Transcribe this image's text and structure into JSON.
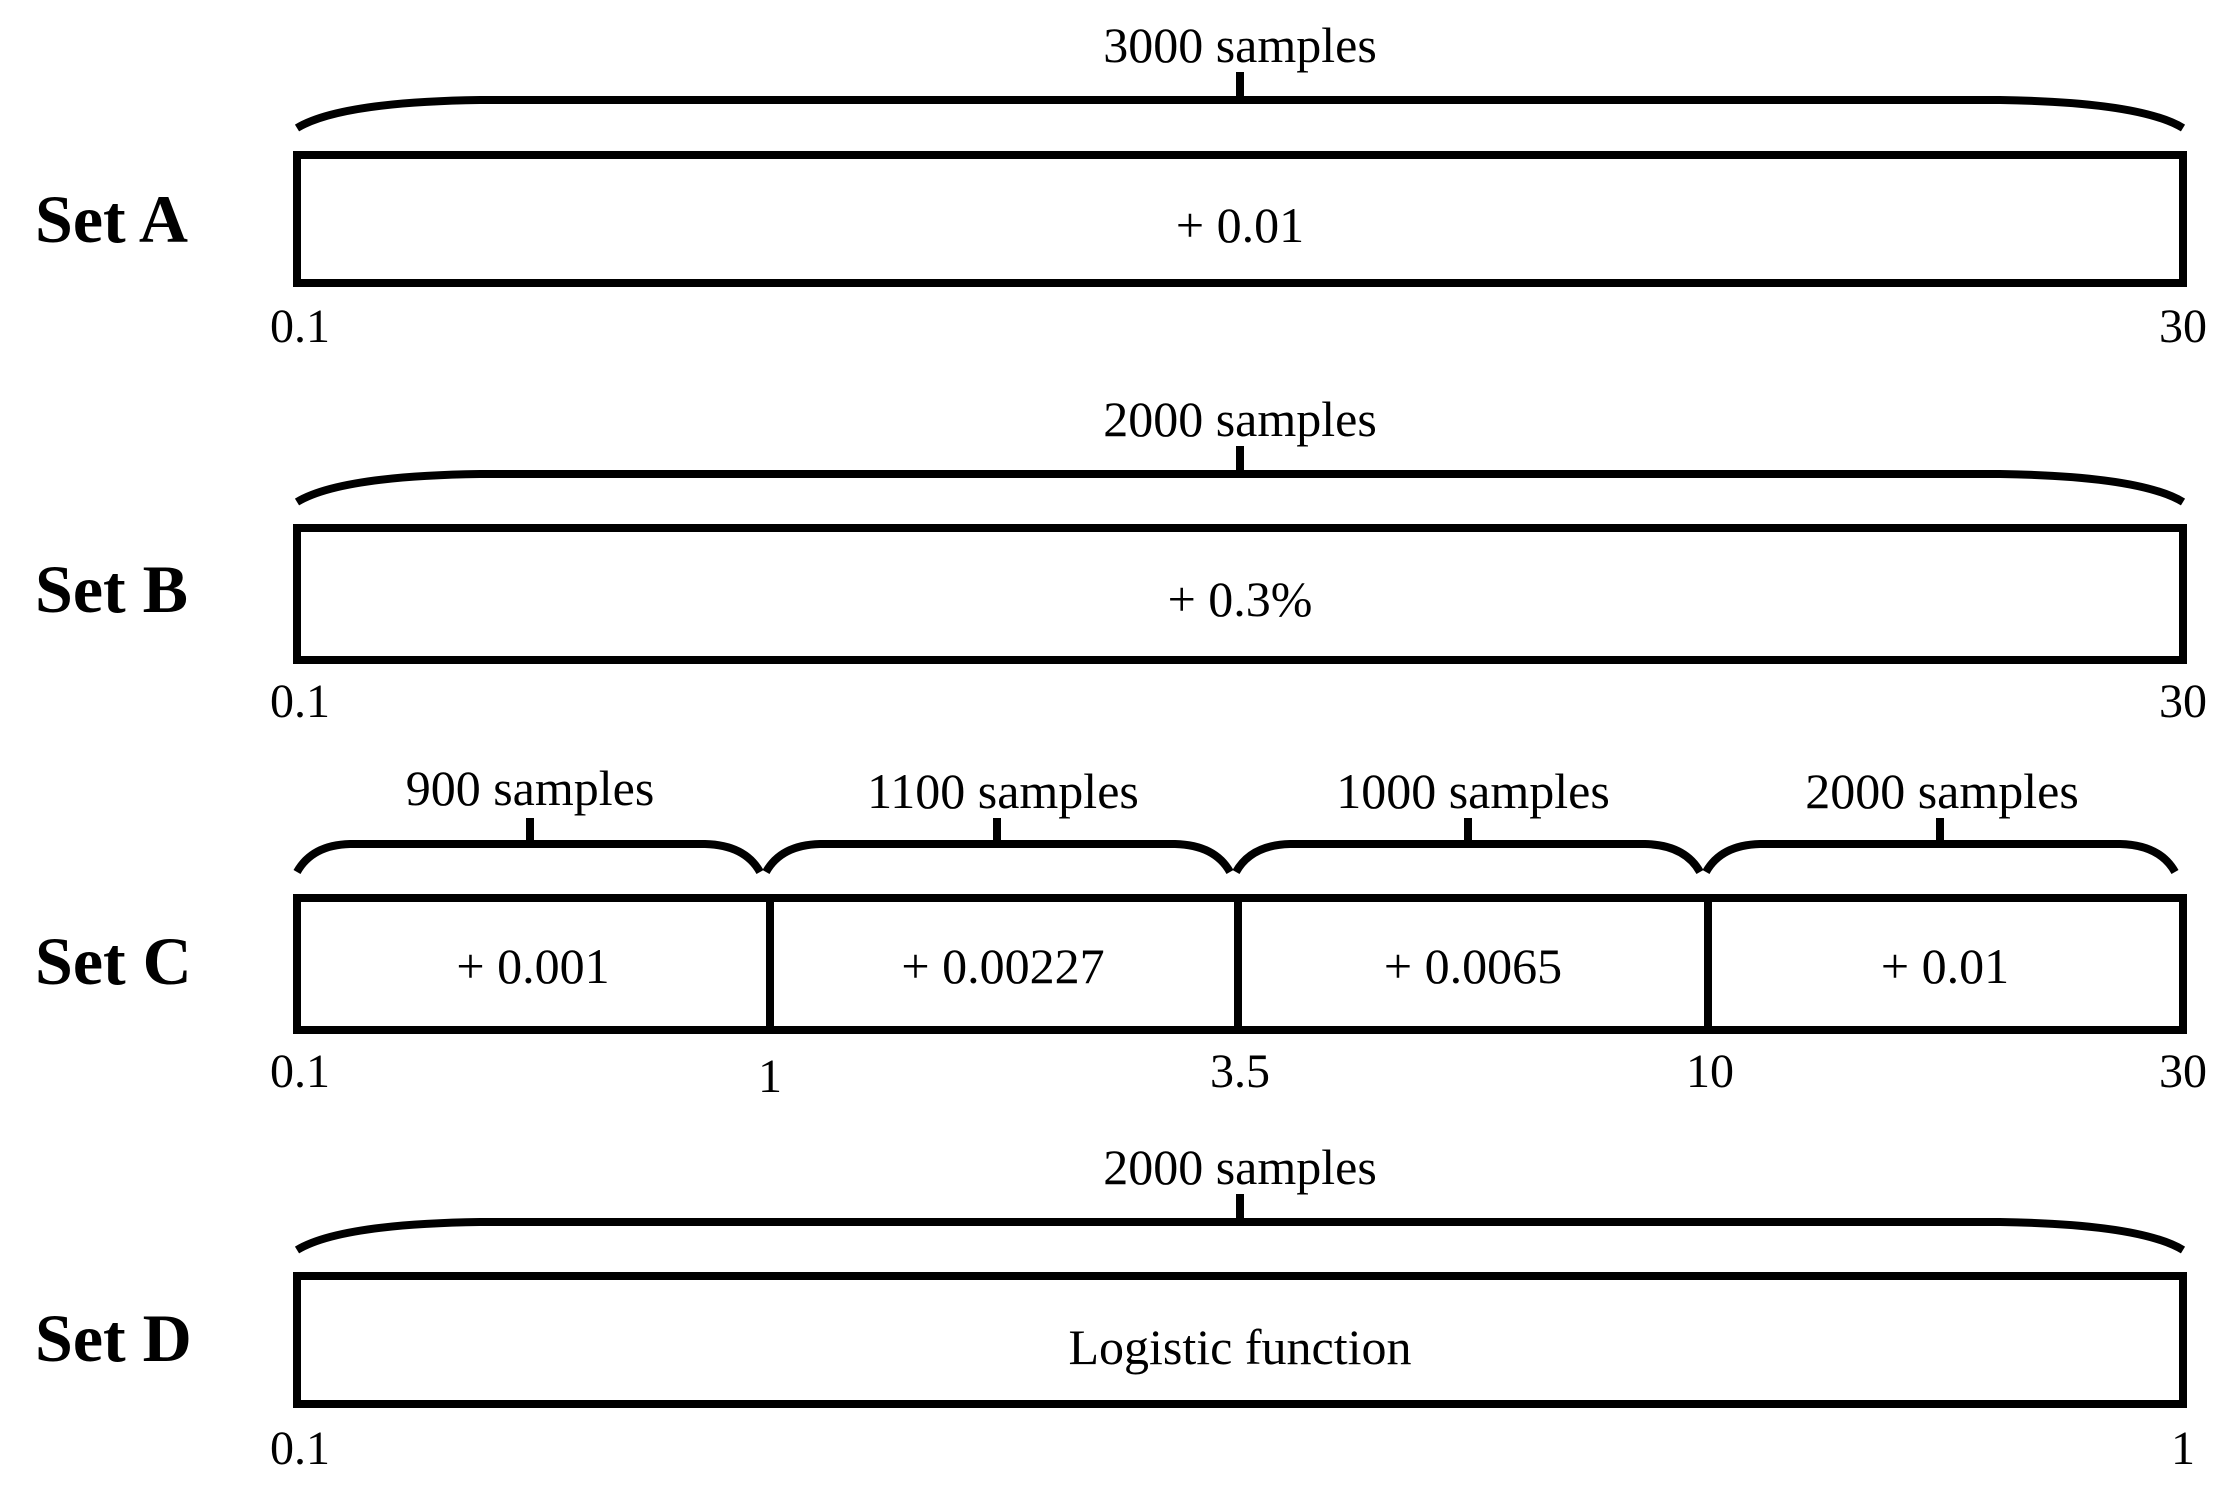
{
  "sets": [
    {
      "label": "Set A",
      "segments": [
        {
          "samples": "3000 samples",
          "increment": "+ 0.01"
        }
      ],
      "ticks": [
        "0.1",
        "30"
      ]
    },
    {
      "label": "Set B",
      "segments": [
        {
          "samples": "2000 samples",
          "increment": "+ 0.3%"
        }
      ],
      "ticks": [
        "0.1",
        "30"
      ]
    },
    {
      "label": "Set C",
      "segments": [
        {
          "samples": "900 samples",
          "increment": "+ 0.001"
        },
        {
          "samples": "1100 samples",
          "increment": "+ 0.00227"
        },
        {
          "samples": "1000 samples",
          "increment": "+ 0.0065"
        },
        {
          "samples": "2000 samples",
          "increment": "+ 0.01"
        }
      ],
      "ticks": [
        "0.1",
        "1",
        "3.5",
        "10",
        "30"
      ]
    },
    {
      "label": "Set D",
      "segments": [
        {
          "samples": "2000 samples",
          "increment": "Logistic function"
        }
      ],
      "ticks": [
        "0.1",
        "1"
      ]
    }
  ]
}
